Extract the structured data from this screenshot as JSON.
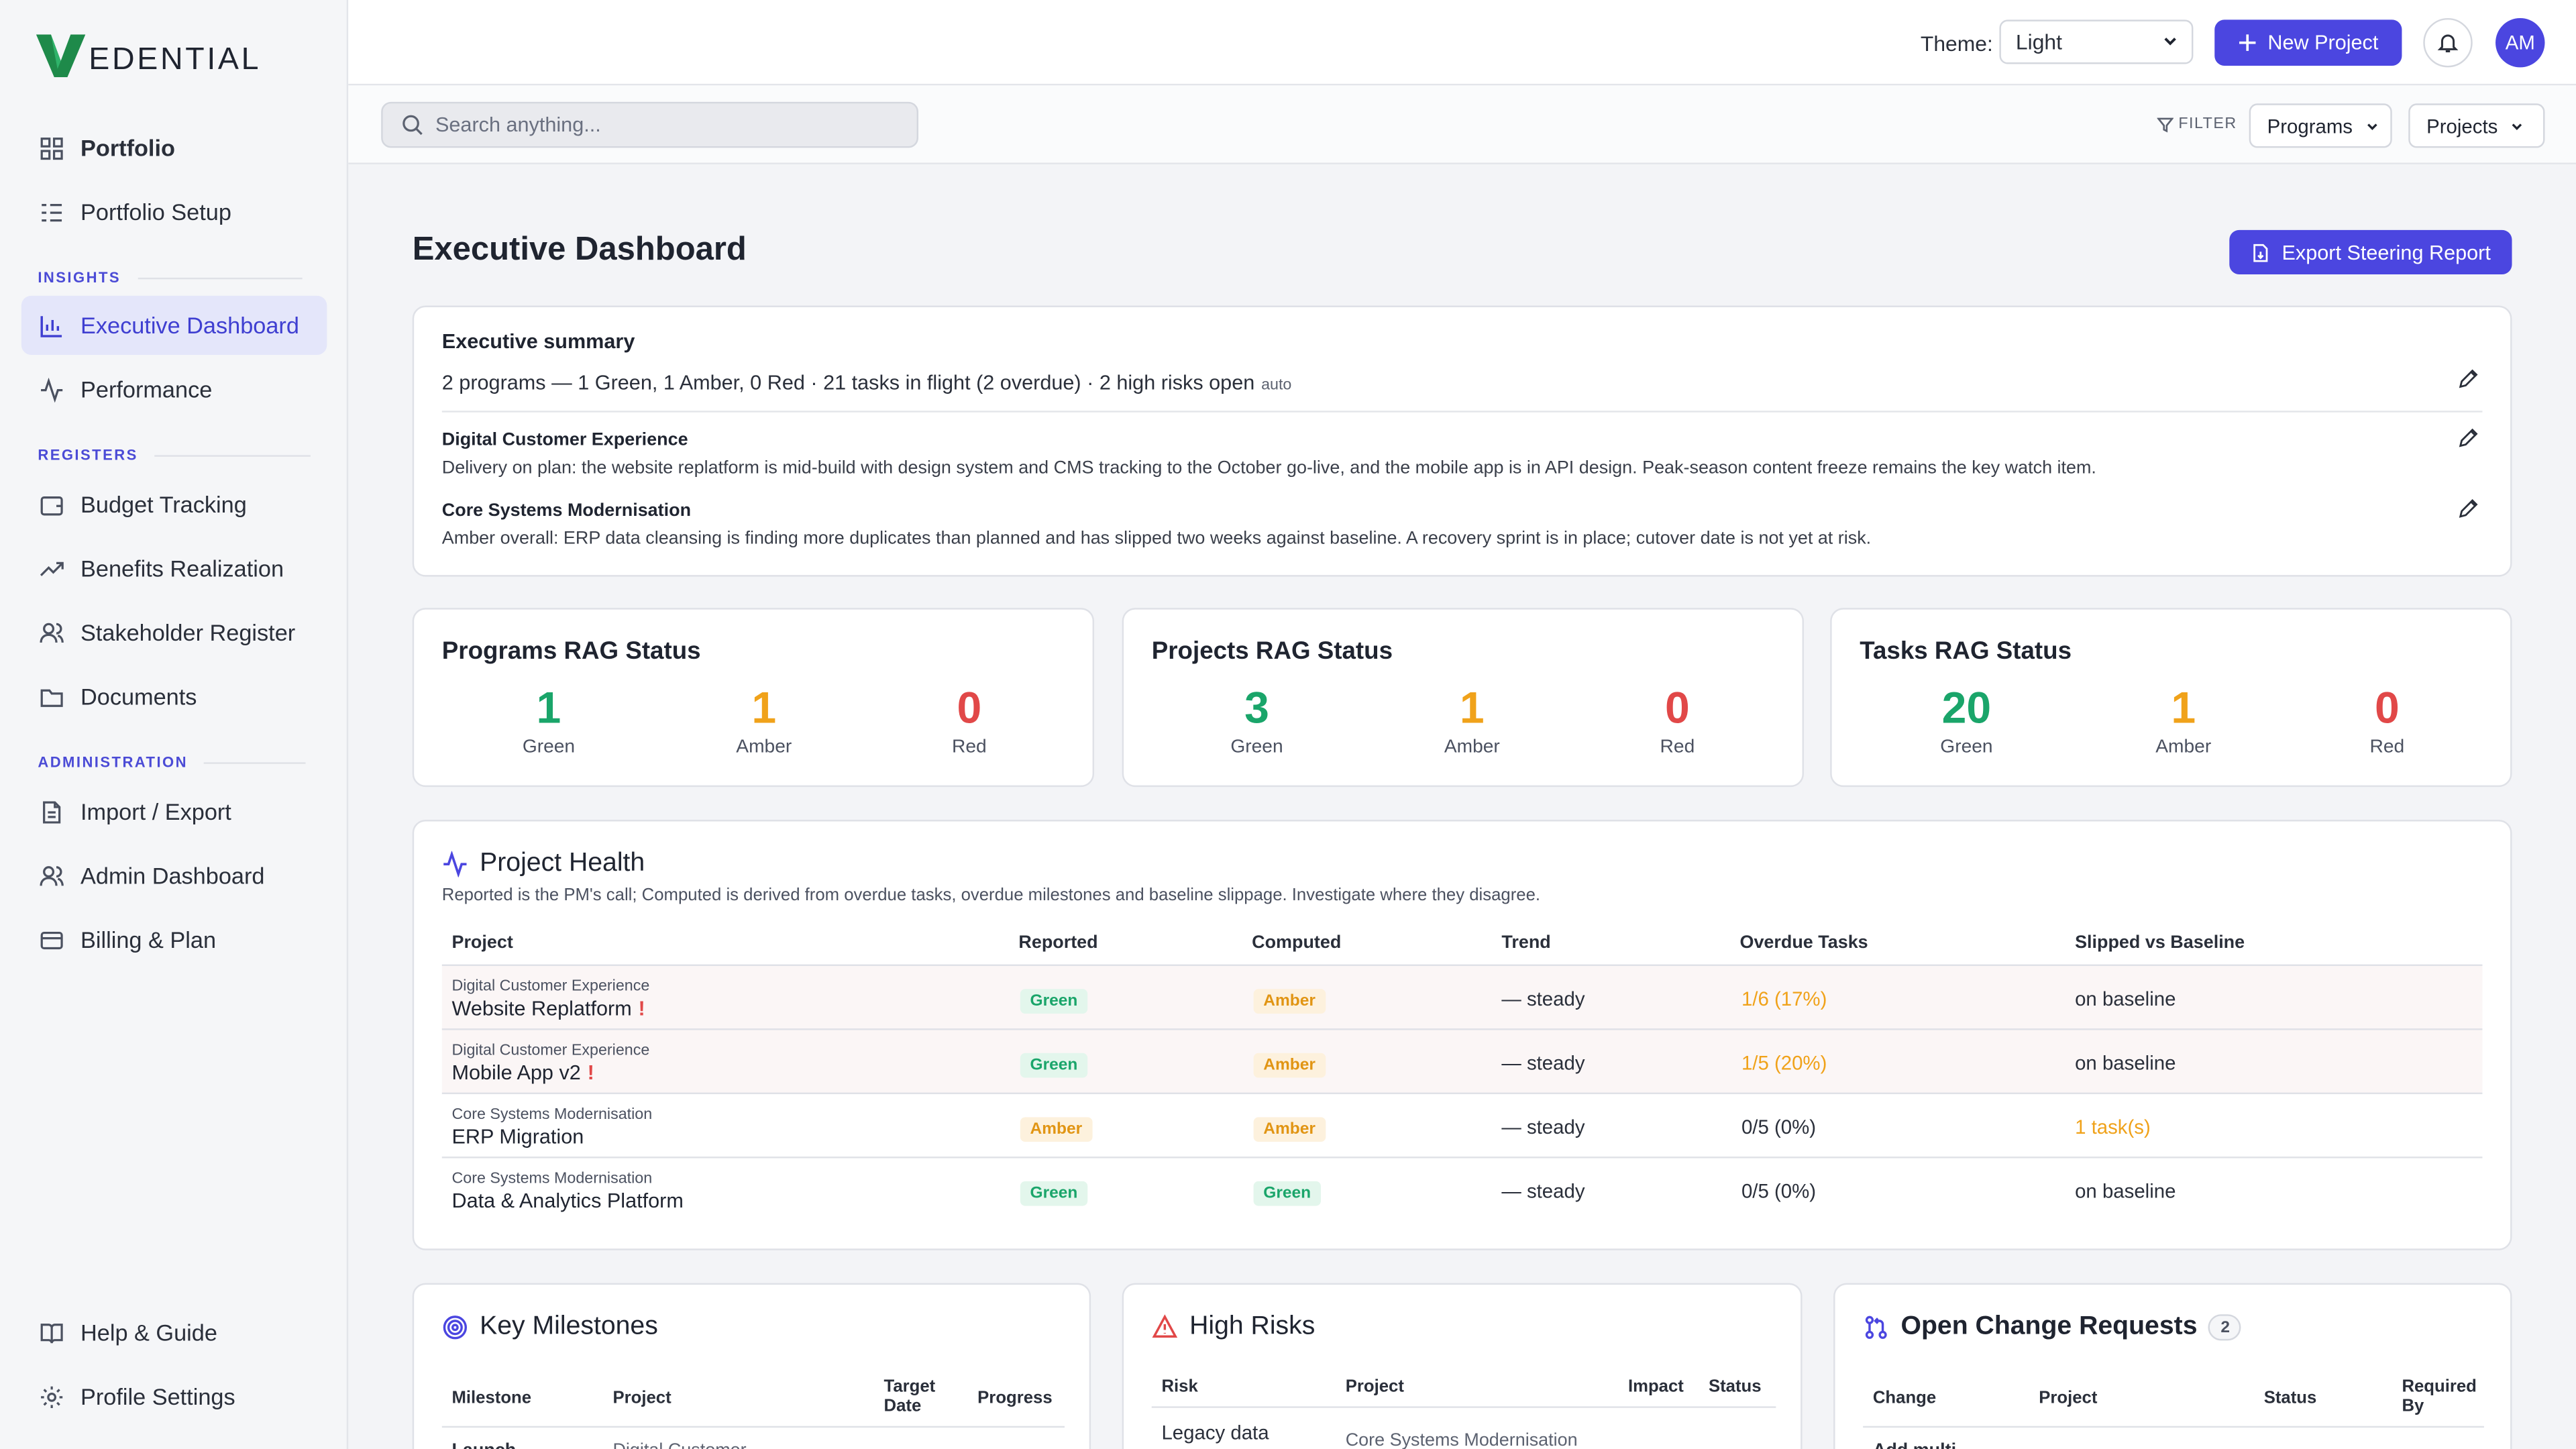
{
  "app": {
    "logo_text": "EDENTIAL"
  },
  "sidebar": {
    "items": [
      {
        "label": "Portfolio"
      },
      {
        "label": "Portfolio Setup"
      },
      {
        "label": "Executive Dashboard"
      },
      {
        "label": "Performance"
      },
      {
        "label": "Budget Tracking"
      },
      {
        "label": "Benefits Realization"
      },
      {
        "label": "Stakeholder Register"
      },
      {
        "label": "Documents"
      },
      {
        "label": "Import / Export"
      },
      {
        "label": "Admin Dashboard"
      },
      {
        "label": "Billing & Plan"
      },
      {
        "label": "Help & Guide"
      },
      {
        "label": "Profile Settings"
      }
    ],
    "sections": {
      "insights": "INSIGHTS",
      "registers": "REGISTERS",
      "administration": "ADMINISTRATION"
    }
  },
  "topbar": {
    "theme_label": "Theme:",
    "theme_value": "Light",
    "new_project": "New Project",
    "avatar_initials": "AM"
  },
  "filterbar": {
    "search_placeholder": "Search anything...",
    "filter_label": "FILTER",
    "programs": "Programs",
    "projects": "Projects"
  },
  "page": {
    "title": "Executive Dashboard",
    "export_button": "Export Steering Report"
  },
  "summary": {
    "title": "Executive summary",
    "line": "2 programs — 1 Green, 1 Amber, 0 Red · 21 tasks in flight (2 overdue) · 2 high risks open",
    "auto": "auto",
    "programs": [
      {
        "name": "Digital Customer Experience",
        "text": "Delivery on plan: the website replatform is mid-build with design system and CMS tracking to the October go-live, and the mobile app is in API design. Peak-season content freeze remains the key watch item."
      },
      {
        "name": "Core Systems Modernisation",
        "text": "Amber overall: ERP data cleansing is finding more duplicates than planned and has slipped two weeks against baseline. A recovery sprint is in place; cutover date is not yet at risk."
      }
    ]
  },
  "rag": [
    {
      "title": "Programs RAG Status",
      "green": "1",
      "amber": "1",
      "red": "0"
    },
    {
      "title": "Projects RAG Status",
      "green": "3",
      "amber": "1",
      "red": "0"
    },
    {
      "title": "Tasks RAG Status",
      "green": "20",
      "amber": "1",
      "red": "0"
    }
  ],
  "rag_labels": {
    "green": "Green",
    "amber": "Amber",
    "red": "Red"
  },
  "health": {
    "title": "Project Health",
    "subtitle": "Reported is the PM's call; Computed is derived from overdue tasks, overdue milestones and baseline slippage. Investigate where they disagree.",
    "columns": [
      "Project",
      "Reported",
      "Computed",
      "Trend",
      "Overdue Tasks",
      "Slipped vs Baseline"
    ],
    "rows": [
      {
        "program": "Digital Customer Experience",
        "project": "Website Replatform",
        "flag": "!",
        "reported": "Green",
        "computed": "Amber",
        "trend": "— steady",
        "overdue": "1/6 (17%)",
        "slipped": "on baseline"
      },
      {
        "program": "Digital Customer Experience",
        "project": "Mobile App v2",
        "flag": "!",
        "reported": "Green",
        "computed": "Amber",
        "trend": "— steady",
        "overdue": "1/5 (20%)",
        "slipped": "on baseline"
      },
      {
        "program": "Core Systems Modernisation",
        "project": "ERP Migration",
        "flag": "",
        "reported": "Amber",
        "computed": "Amber",
        "trend": "— steady",
        "overdue": "0/5 (0%)",
        "slipped": "1 task(s)"
      },
      {
        "program": "Core Systems Modernisation",
        "project": "Data & Analytics Platform",
        "flag": "",
        "reported": "Green",
        "computed": "Green",
        "trend": "— steady",
        "overdue": "0/5 (0%)",
        "slipped": "on baseline"
      }
    ]
  },
  "milestones": {
    "title": "Key Milestones",
    "columns": {
      "milestone": "Milestone",
      "project": "Project",
      "target": "Target Date",
      "progress": "Progress"
    },
    "first_row": {
      "milestone": "Launch",
      "project": "Digital Customer"
    }
  },
  "risks": {
    "title": "High Risks",
    "columns": {
      "risk": "Risk",
      "project": "Project",
      "impact": "Impact",
      "status": "Status"
    },
    "first_row": {
      "risk": "Legacy data",
      "project": "Core Systems Modernisation"
    }
  },
  "changes": {
    "title": "Open Change Requests",
    "count": "2",
    "columns": {
      "change": "Change",
      "project": "Project",
      "status": "Status",
      "required": "Required By"
    },
    "first_row": {
      "change": "Add multi"
    }
  },
  "colors": {
    "accent": "#4b46e0",
    "green": "#1aa56a",
    "amber": "#f0a21a",
    "red": "#e14848"
  }
}
